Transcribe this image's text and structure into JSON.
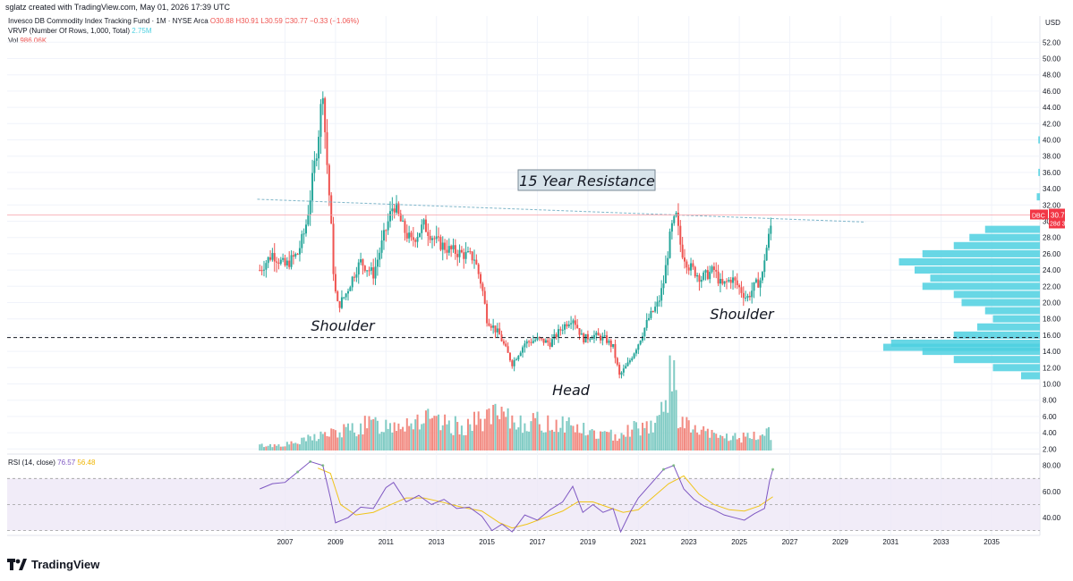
{
  "header": {
    "credit": "sglatz created with TradingView.com, May 01, 2026 17:39 UTC"
  },
  "legend": {
    "title": "Invesco DB Commodity Index Tracking Fund · 1M · NYSE Arca",
    "ohlc": "O30.88  H30.91  L30.59  C30.77  −0.33 (−1.06%)",
    "vrvp_label": "VRVP (Number Of Rows, 1,000, Total)",
    "vrvp_value": "2.75M",
    "vol_label": "Vol",
    "vol_value": "986.06K",
    "rsi_label": "RSI (14, close)",
    "rsi_value": "76.57",
    "rsi_ma_value": "56.48"
  },
  "brand": {
    "name": "TradingView"
  },
  "colors": {
    "up": "#26a69a",
    "down": "#ef5350",
    "vol_up": "#80cbc4",
    "vol_down": "#f28b82",
    "vrvp": "#4dd0e1",
    "rsi": "#7e57c2",
    "rsi_ma": "#f0c419",
    "resistance": "#7fb6c9",
    "price_tag": "#f23645"
  },
  "chart_data": [
    {
      "type": "candlestick",
      "symbol": "DBC",
      "interval": "1M",
      "currency": "USD",
      "last_price": 30.77,
      "countdown": "28d 3h",
      "y_ticks": [
        2.0,
        4.0,
        6.0,
        8.0,
        10.0,
        12.0,
        14.0,
        16.0,
        18.0,
        20.0,
        22.0,
        24.0,
        26.0,
        28.0,
        30.0,
        32.0,
        34.0,
        36.0,
        38.0,
        40.0,
        42.0,
        44.0,
        46.0,
        48.0,
        50.0,
        52.0
      ],
      "x_ticks": [
        "2007",
        "2009",
        "2011",
        "2013",
        "2015",
        "2017",
        "2019",
        "2021",
        "2023",
        "2025",
        "2027",
        "2029",
        "2031",
        "2033",
        "2035"
      ],
      "ylim": [
        1,
        53
      ],
      "xlim": [
        2006.0,
        2036.7
      ],
      "price_path": [
        [
          2006.0,
          24.0
        ],
        [
          2006.5,
          26.0
        ],
        [
          2007.0,
          24.5
        ],
        [
          2007.5,
          26.0
        ],
        [
          2007.8,
          29.0
        ],
        [
          2008.0,
          33.0
        ],
        [
          2008.3,
          40.0
        ],
        [
          2008.5,
          46.5
        ],
        [
          2008.6,
          40.0
        ],
        [
          2008.8,
          31.0
        ],
        [
          2008.95,
          22.0
        ],
        [
          2009.1,
          19.5
        ],
        [
          2009.4,
          21.0
        ],
        [
          2009.8,
          24.0
        ],
        [
          2010.0,
          25.0
        ],
        [
          2010.5,
          23.5
        ],
        [
          2011.0,
          29.0
        ],
        [
          2011.3,
          32.2
        ],
        [
          2011.7,
          29.0
        ],
        [
          2012.0,
          27.5
        ],
        [
          2012.5,
          29.5
        ],
        [
          2013.0,
          27.5
        ],
        [
          2013.5,
          26.5
        ],
        [
          2014.0,
          26.0
        ],
        [
          2014.5,
          25.5
        ],
        [
          2014.8,
          22.0
        ],
        [
          2015.0,
          18.0
        ],
        [
          2015.5,
          16.0
        ],
        [
          2016.0,
          12.5
        ],
        [
          2016.5,
          15.0
        ],
        [
          2017.0,
          15.5
        ],
        [
          2017.5,
          15.0
        ],
        [
          2018.0,
          17.0
        ],
        [
          2018.4,
          18.2
        ],
        [
          2018.8,
          15.5
        ],
        [
          2019.2,
          16.0
        ],
        [
          2019.7,
          15.5
        ],
        [
          2020.0,
          14.5
        ],
        [
          2020.25,
          11.0
        ],
        [
          2020.6,
          12.5
        ],
        [
          2021.0,
          15.0
        ],
        [
          2021.4,
          18.0
        ],
        [
          2021.8,
          20.0
        ],
        [
          2022.0,
          22.5
        ],
        [
          2022.3,
          29.0
        ],
        [
          2022.5,
          30.5
        ],
        [
          2022.7,
          26.5
        ],
        [
          2023.0,
          24.5
        ],
        [
          2023.5,
          23.0
        ],
        [
          2024.0,
          24.0
        ],
        [
          2024.3,
          22.0
        ],
        [
          2024.7,
          23.0
        ],
        [
          2025.0,
          21.8
        ],
        [
          2025.3,
          20.5
        ],
        [
          2025.6,
          22.0
        ],
        [
          2025.9,
          23.0
        ],
        [
          2026.0,
          25.5
        ],
        [
          2026.2,
          28.5
        ],
        [
          2026.33,
          30.77
        ]
      ],
      "volume_millions": [
        [
          2006.0,
          0.9
        ],
        [
          2006.5,
          0.9
        ],
        [
          2007.0,
          1.1
        ],
        [
          2007.5,
          1.3
        ],
        [
          2008.0,
          2.2
        ],
        [
          2008.5,
          2.8
        ],
        [
          2009.0,
          3.0
        ],
        [
          2009.5,
          3.6
        ],
        [
          2010.0,
          4.2
        ],
        [
          2010.5,
          4.6
        ],
        [
          2011.0,
          4.4
        ],
        [
          2011.5,
          5.0
        ],
        [
          2012.0,
          5.2
        ],
        [
          2012.5,
          5.6
        ],
        [
          2013.0,
          4.6
        ],
        [
          2013.5,
          4.4
        ],
        [
          2014.0,
          4.2
        ],
        [
          2014.5,
          4.8
        ],
        [
          2015.0,
          6.0
        ],
        [
          2015.5,
          5.8
        ],
        [
          2016.0,
          5.0
        ],
        [
          2016.5,
          5.2
        ],
        [
          2017.0,
          4.8
        ],
        [
          2017.5,
          4.6
        ],
        [
          2018.0,
          5.0
        ],
        [
          2018.5,
          4.2
        ],
        [
          2019.0,
          3.2
        ],
        [
          2019.5,
          2.8
        ],
        [
          2020.0,
          2.6
        ],
        [
          2020.5,
          3.6
        ],
        [
          2021.0,
          4.2
        ],
        [
          2021.5,
          4.6
        ],
        [
          2022.0,
          6.5
        ],
        [
          2022.3,
          14.5
        ],
        [
          2022.6,
          6.0
        ],
        [
          2023.0,
          4.0
        ],
        [
          2023.5,
          3.2
        ],
        [
          2024.0,
          2.6
        ],
        [
          2024.5,
          2.4
        ],
        [
          2025.0,
          2.3
        ],
        [
          2025.5,
          2.2
        ],
        [
          2026.0,
          3.0
        ],
        [
          2026.2,
          3.8
        ],
        [
          2026.33,
          1.0
        ]
      ],
      "annotations": [
        {
          "text": "15 Year Resistance",
          "style": "boxed"
        },
        {
          "text": "Shoulder"
        },
        {
          "text": "Head"
        },
        {
          "text": "Shoulder"
        }
      ],
      "resistance_line": {
        "x": [
          2005.9,
          2030.0
        ],
        "y": [
          32.7,
          29.9
        ]
      },
      "support_line": {
        "y": 15.7
      },
      "vrvp_profile": [
        [
          29.0,
          0.35
        ],
        [
          28.0,
          0.45
        ],
        [
          27.0,
          0.55
        ],
        [
          26.0,
          0.75
        ],
        [
          25.0,
          0.9
        ],
        [
          24.0,
          0.8
        ],
        [
          23.0,
          0.7
        ],
        [
          22.0,
          0.75
        ],
        [
          21.0,
          0.55
        ],
        [
          20.0,
          0.5
        ],
        [
          19.0,
          0.35
        ],
        [
          18.0,
          0.3
        ],
        [
          17.0,
          0.4
        ],
        [
          16.0,
          0.55
        ],
        [
          15.0,
          0.95
        ],
        [
          14.5,
          1.0
        ],
        [
          14.0,
          0.75
        ],
        [
          13.0,
          0.55
        ],
        [
          12.0,
          0.3
        ],
        [
          11.0,
          0.12
        ],
        [
          33.0,
          0.02
        ],
        [
          36.0,
          0.01
        ],
        [
          40.0,
          0.01
        ]
      ]
    },
    {
      "type": "line",
      "title": "RSI (14, close)",
      "y_ticks": [
        40.0,
        60.0,
        80.0
      ],
      "ylim": [
        27,
        86
      ],
      "bands": [
        30,
        50,
        70
      ],
      "series": [
        {
          "name": "RSI",
          "x": [
            2006.0,
            2006.5,
            2007.0,
            2007.5,
            2008.0,
            2008.5,
            2008.8,
            2009.0,
            2009.5,
            2010.0,
            2010.5,
            2011.0,
            2011.3,
            2011.8,
            2012.3,
            2012.8,
            2013.3,
            2013.8,
            2014.3,
            2014.8,
            2015.2,
            2015.6,
            2016.0,
            2016.5,
            2017.0,
            2017.5,
            2018.0,
            2018.4,
            2018.8,
            2019.2,
            2019.6,
            2020.0,
            2020.3,
            2020.7,
            2021.0,
            2021.5,
            2022.0,
            2022.4,
            2022.8,
            2023.2,
            2023.6,
            2024.0,
            2024.4,
            2024.8,
            2025.2,
            2025.6,
            2026.0,
            2026.2,
            2026.33
          ],
          "y": [
            62,
            66,
            67,
            75,
            83,
            80,
            55,
            36,
            40,
            48,
            47,
            63,
            67,
            52,
            57,
            50,
            54,
            47,
            48,
            41,
            30,
            35,
            29,
            42,
            38,
            46,
            52,
            64,
            44,
            50,
            44,
            47,
            29,
            45,
            55,
            66,
            77,
            80,
            62,
            54,
            49,
            46,
            42,
            40,
            38,
            43,
            47,
            68,
            77
          ]
        },
        {
          "name": "RSI-based MA",
          "x": [
            2008.3,
            2008.8,
            2009.2,
            2009.8,
            2010.5,
            2011.2,
            2011.8,
            2012.5,
            2013.2,
            2014.0,
            2014.8,
            2015.5,
            2016.0,
            2016.6,
            2017.3,
            2018.0,
            2018.6,
            2019.2,
            2019.8,
            2020.4,
            2021.0,
            2021.6,
            2022.2,
            2022.8,
            2023.4,
            2024.0,
            2024.6,
            2025.2,
            2025.8,
            2026.33
          ],
          "y": [
            78,
            74,
            50,
            42,
            44,
            50,
            55,
            55,
            52,
            48,
            45,
            36,
            32,
            35,
            40,
            45,
            52,
            52,
            48,
            44,
            46,
            56,
            66,
            72,
            58,
            50,
            46,
            45,
            49,
            56
          ],
          "color": "#f0c419"
        }
      ]
    }
  ]
}
